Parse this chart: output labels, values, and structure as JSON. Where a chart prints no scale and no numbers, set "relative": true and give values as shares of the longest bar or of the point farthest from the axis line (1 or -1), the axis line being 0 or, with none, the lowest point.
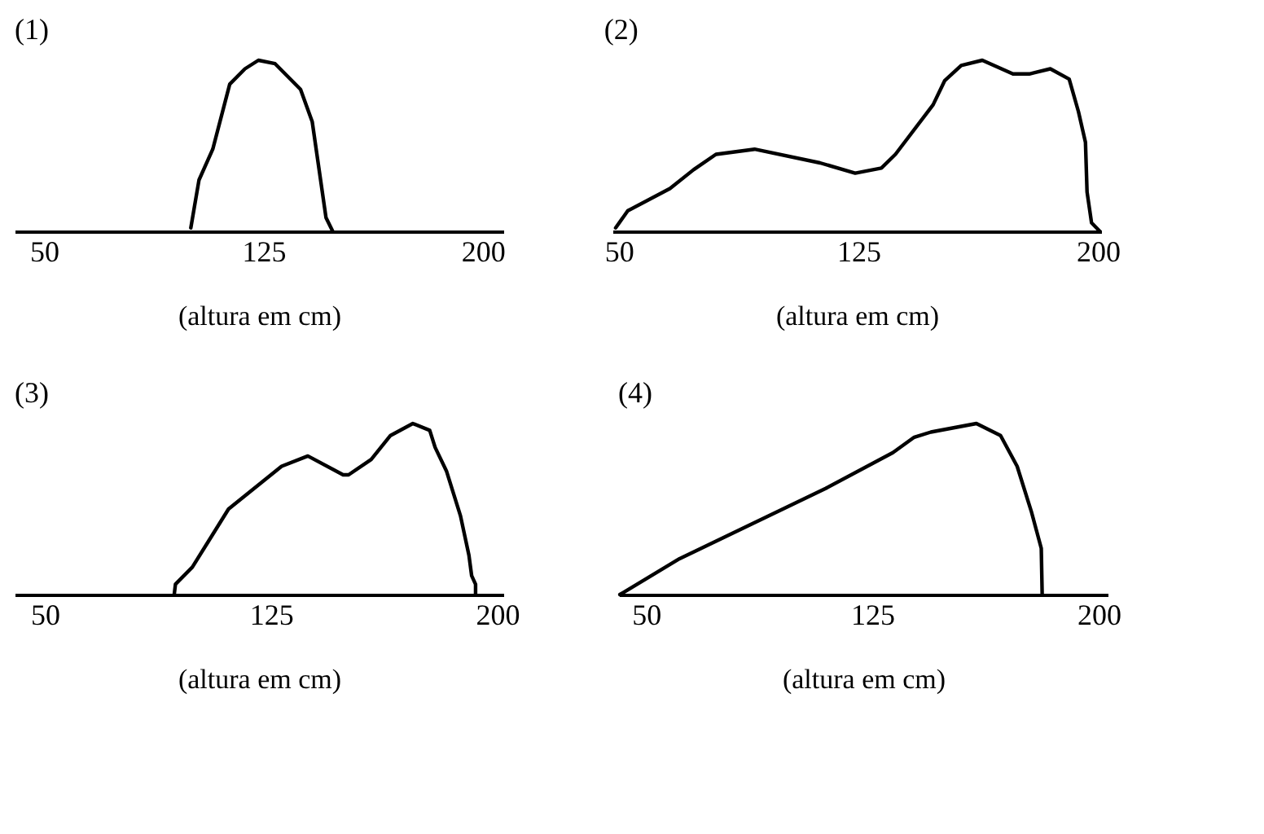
{
  "chart_data": [
    {
      "type": "line",
      "title": "(1)",
      "xlabel": "(altura em cm)",
      "relative": true,
      "color": "#000000",
      "xlim": [
        40,
        207
      ],
      "xticks": [
        50,
        125,
        200
      ],
      "x": [
        100.2,
        103,
        107.7,
        113.5,
        118.7,
        123.3,
        129,
        137.7,
        141.7,
        146.4,
        148.7
      ],
      "values": [
        0.02,
        0.3,
        0.48,
        0.86,
        0.95,
        1,
        0.98,
        0.83,
        0.64,
        0.08,
        0
      ]
    },
    {
      "type": "line",
      "title": "(2)",
      "xlabel": "(altura em cm)",
      "relative": true,
      "color": "#000000",
      "xlim": [
        48,
        201
      ],
      "xticks": [
        50,
        125,
        200
      ],
      "x": [
        49,
        52.8,
        66,
        73.4,
        80.4,
        92.5,
        113,
        124,
        132.2,
        136.6,
        148.4,
        152,
        157.2,
        163.8,
        173.4,
        178.5,
        185.1,
        191,
        193.9,
        196.1,
        196.6,
        198,
        200.6
      ],
      "values": [
        0.02,
        0.12,
        0.25,
        0.36,
        0.45,
        0.48,
        0.4,
        0.34,
        0.37,
        0.45,
        0.74,
        0.88,
        0.97,
        1,
        0.92,
        0.92,
        0.95,
        0.89,
        0.7,
        0.52,
        0.23,
        0.05,
        0
      ]
    },
    {
      "type": "line",
      "title": "(3)",
      "xlabel": "(altura em cm)",
      "relative": true,
      "color": "#000000",
      "xlim": [
        40,
        202
      ],
      "xticks": [
        50,
        125,
        200
      ],
      "x": [
        92.9,
        93.3,
        98.9,
        110.9,
        128.5,
        137.2,
        148.9,
        150.7,
        158.2,
        164.6,
        172,
        177.6,
        179.4,
        183.2,
        187.8,
        190.6,
        191.5,
        192.8,
        192.8
      ],
      "values": [
        0,
        0.06,
        0.16,
        0.5,
        0.75,
        0.81,
        0.7,
        0.7,
        0.79,
        0.93,
        1,
        0.96,
        0.86,
        0.72,
        0.46,
        0.23,
        0.11,
        0.06,
        0
      ]
    },
    {
      "type": "line",
      "title": "(4)",
      "xlabel": "(altura em cm)",
      "relative": true,
      "color": "#000000",
      "xlim": [
        41,
        203
      ],
      "xticks": [
        50,
        125,
        200
      ],
      "x": [
        41.3,
        61.1,
        109.5,
        131.8,
        138.9,
        144.4,
        159.5,
        167.5,
        173,
        177.8,
        181,
        181.3
      ],
      "values": [
        0,
        0.21,
        0.62,
        0.83,
        0.92,
        0.95,
        1,
        0.93,
        0.75,
        0.48,
        0.27,
        0
      ]
    }
  ]
}
